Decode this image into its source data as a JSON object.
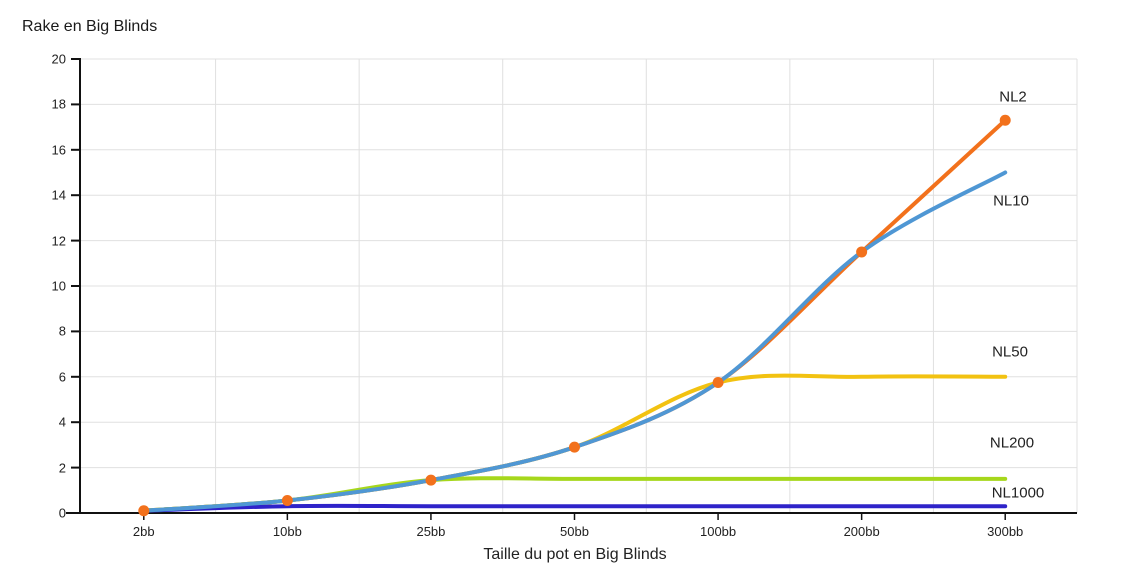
{
  "chart_data": {
    "type": "line",
    "title": "Rake en Big Blinds",
    "xlabel": "Taille du pot en Big Blinds",
    "ylabel": "Rake en Big Blinds",
    "categories": [
      "2bb",
      "10bb",
      "25bb",
      "50bb",
      "100bb",
      "200bb",
      "300bb"
    ],
    "y_ticks": [
      0,
      2,
      4,
      6,
      8,
      10,
      12,
      14,
      16,
      18,
      20
    ],
    "ylim": [
      0,
      20
    ],
    "grid": true,
    "legend_position": "inline-end-of-line-labels",
    "colors": {
      "gridline": "#e0e0e0",
      "axis": "#111111",
      "text": "#222222"
    },
    "series": [
      {
        "name": "NL2",
        "color": "#f2711c",
        "marker": "circle",
        "values": [
          0.1,
          0.55,
          1.45,
          2.9,
          5.75,
          11.5,
          17.3
        ]
      },
      {
        "name": "NL10",
        "color": "#4f97d4",
        "marker": "none",
        "values": [
          0.1,
          0.55,
          1.45,
          2.9,
          5.75,
          11.5,
          15.0
        ]
      },
      {
        "name": "NL50",
        "color": "#f2c211",
        "marker": "none",
        "values": [
          0.1,
          0.55,
          1.45,
          2.9,
          5.75,
          6.0,
          6.0
        ]
      },
      {
        "name": "NL200",
        "color": "#a6d71c",
        "marker": "none",
        "values": [
          0.1,
          0.55,
          1.45,
          1.5,
          1.5,
          1.5,
          1.5
        ]
      },
      {
        "name": "NL1000",
        "color": "#2e23c9",
        "marker": "none",
        "values": [
          0.1,
          0.3,
          0.3,
          0.3,
          0.3,
          0.3,
          0.3
        ]
      }
    ]
  }
}
